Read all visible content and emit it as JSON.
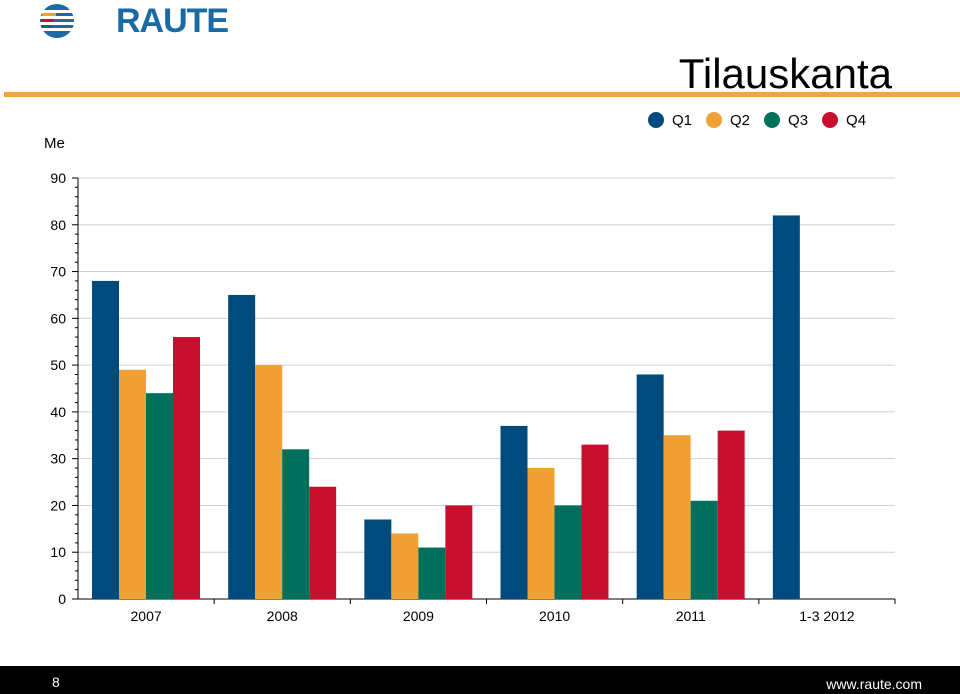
{
  "header": {
    "logo_text": "RAUTE",
    "title": "Tilauskanta"
  },
  "footer": {
    "page_number": "8",
    "url": "www.raute.com"
  },
  "colors": {
    "Q1": "#004b7d",
    "Q2": "#f0a035",
    "Q3": "#00705d",
    "Q4": "#c8102e",
    "rule": "#f0a541"
  },
  "chart_data": {
    "type": "bar",
    "title": "Tilauskanta",
    "ylabel": "Me",
    "xlabel": "",
    "ylim": [
      0,
      90
    ],
    "yticks": [
      0,
      10,
      20,
      30,
      40,
      50,
      60,
      70,
      80,
      90
    ],
    "grid": true,
    "legend_position": "top-right",
    "categories": [
      "2007",
      "2008",
      "2009",
      "2010",
      "2011",
      "1-3 2012"
    ],
    "series": [
      {
        "name": "Q1",
        "color": "#004b7d",
        "values": [
          68,
          65,
          17,
          37,
          48,
          82
        ]
      },
      {
        "name": "Q2",
        "color": "#f0a035",
        "values": [
          49,
          50,
          14,
          28,
          35,
          null
        ]
      },
      {
        "name": "Q3",
        "color": "#00705d",
        "values": [
          44,
          32,
          11,
          20,
          21,
          null
        ]
      },
      {
        "name": "Q4",
        "color": "#c8102e",
        "values": [
          56,
          24,
          20,
          33,
          36,
          null
        ]
      }
    ]
  }
}
